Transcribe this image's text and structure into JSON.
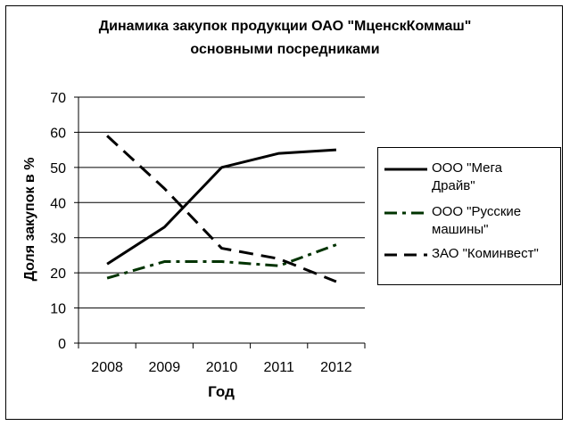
{
  "chart_data": {
    "type": "line",
    "title_line1": "Динамика закупок продукции ОАО \"МценскКоммаш\"",
    "title_line2": "основными посредниками",
    "xlabel": "Год",
    "ylabel": "Доля закупок в %",
    "categories": [
      "2008",
      "2009",
      "2010",
      "2011",
      "2012"
    ],
    "ylim": [
      0,
      70
    ],
    "yticks": [
      0,
      10,
      20,
      30,
      40,
      50,
      60,
      70
    ],
    "grid": true,
    "legend_position": "right",
    "series": [
      {
        "name_line1": "ООО \"Мега",
        "name_line2": "Драйв\"",
        "values": [
          22.5,
          33,
          50,
          54,
          55
        ],
        "color": "#000000",
        "style": "solid"
      },
      {
        "name_line1": "ООО \"Русские",
        "name_line2": "машины\"",
        "values": [
          18.5,
          23.2,
          23.2,
          22,
          28
        ],
        "color": "#003300",
        "style": "dash-dot"
      },
      {
        "name_line1": "ЗАО \"Коминвест\"",
        "name_line2": "",
        "values": [
          59,
          44,
          27,
          24,
          17.5
        ],
        "color": "#000000",
        "style": "dash"
      }
    ]
  }
}
